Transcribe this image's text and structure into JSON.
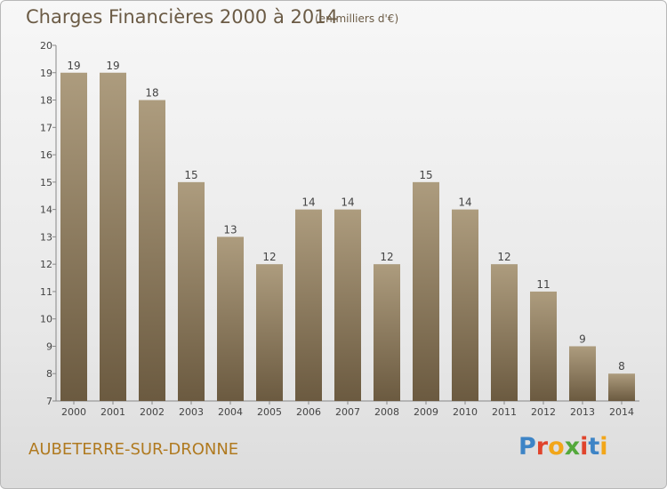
{
  "header": {
    "title": "Charges Financières 2000 à 2014",
    "unit": "(en milliers d'€)"
  },
  "footer": {
    "commune": "AUBETERRE-SUR-DRONNE"
  },
  "logo": {
    "letters": [
      "P",
      "r",
      "o",
      "x",
      "i",
      "t",
      "i"
    ],
    "colors": [
      "#3d84c6",
      "#e0442c",
      "#f2a619",
      "#53a83b",
      "#e0442c",
      "#3d84c6",
      "#f2a619"
    ]
  },
  "colors": {
    "bar_top": "#ad9c7e",
    "bar_bottom": "#6b5a40",
    "text": "#6b5b45"
  },
  "chart_data": {
    "type": "bar",
    "categories": [
      "2000",
      "2001",
      "2002",
      "2003",
      "2004",
      "2005",
      "2006",
      "2007",
      "2008",
      "2009",
      "2010",
      "2011",
      "2012",
      "2013",
      "2014"
    ],
    "values": [
      19,
      19,
      18,
      15,
      13,
      12,
      14,
      14,
      12,
      15,
      14,
      12,
      11,
      9,
      8
    ],
    "title": "Charges Financières 2000 à 2014",
    "ylabel": "",
    "xlabel": "",
    "ylim": [
      7,
      20
    ],
    "yticks": [
      7,
      8,
      9,
      10,
      11,
      12,
      13,
      14,
      15,
      16,
      17,
      18,
      19,
      20
    ],
    "grid": false
  }
}
